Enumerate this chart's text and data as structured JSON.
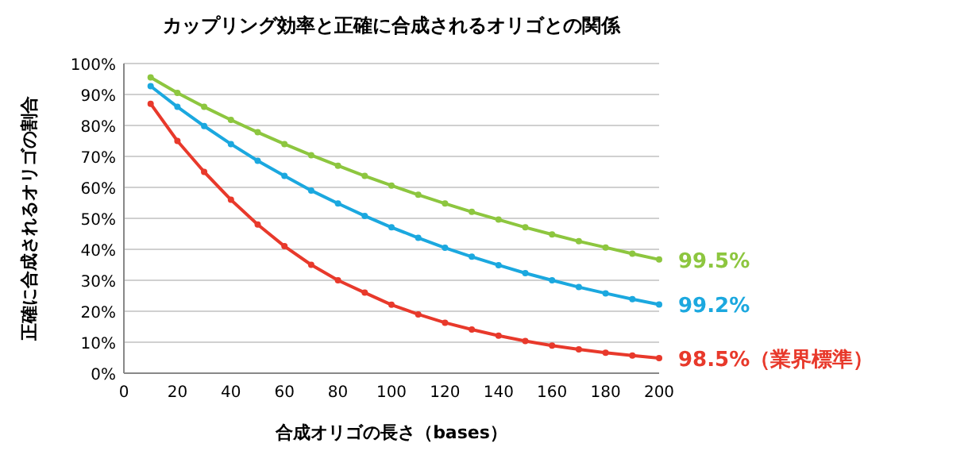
{
  "chart_data": {
    "type": "line",
    "title": "カップリング効率と正確に合成されるオリゴとの関係",
    "xlabel": "合成オリゴの長さ（bases）",
    "ylabel": "正確に合成されるオリゴの割合",
    "x": [
      10,
      20,
      30,
      40,
      50,
      60,
      70,
      80,
      90,
      100,
      110,
      120,
      130,
      140,
      150,
      160,
      170,
      180,
      190,
      200
    ],
    "series": [
      {
        "name": "99.5%",
        "color": "#8dc63f",
        "values": [
          95.5,
          90.5,
          86.0,
          81.8,
          77.8,
          74.0,
          70.4,
          67.0,
          63.7,
          60.6,
          57.6,
          54.8,
          52.1,
          49.6,
          47.1,
          44.8,
          42.6,
          40.6,
          38.6,
          36.7
        ]
      },
      {
        "name": "99.2%",
        "color": "#1ba8df",
        "values": [
          92.7,
          86.0,
          79.8,
          74.0,
          68.6,
          63.7,
          59.0,
          54.8,
          50.8,
          47.1,
          43.7,
          40.5,
          37.6,
          34.9,
          32.3,
          30.0,
          27.8,
          25.8,
          23.9,
          22.2
        ]
      },
      {
        "name": "98.5%（業界標準）",
        "color": "#e8392b",
        "values": [
          87,
          75,
          65,
          56,
          48,
          41,
          35,
          30,
          26,
          22.1,
          19.0,
          16.3,
          14.1,
          12.1,
          10.4,
          8.9,
          7.7,
          6.6,
          5.7,
          4.9
        ]
      }
    ],
    "xlim": [
      0,
      200
    ],
    "xticks": [
      0,
      20,
      40,
      60,
      80,
      100,
      120,
      140,
      160,
      180,
      200
    ],
    "ylim": [
      0,
      100
    ],
    "yticks": [
      {
        "value": 0,
        "label": "0%"
      },
      {
        "value": 10,
        "label": "10%"
      },
      {
        "value": 20,
        "label": "20%"
      },
      {
        "value": 30,
        "label": "30%"
      },
      {
        "value": 40,
        "label": "40%"
      },
      {
        "value": 50,
        "label": "50%"
      },
      {
        "value": 60,
        "label": "60%"
      },
      {
        "value": 70,
        "label": "70%"
      },
      {
        "value": 80,
        "label": "80%"
      },
      {
        "value": 90,
        "label": "90%"
      },
      {
        "value": 100,
        "label": "100%"
      }
    ],
    "grid": "y",
    "marker": "circle",
    "line_style": "solid",
    "legend": false
  }
}
